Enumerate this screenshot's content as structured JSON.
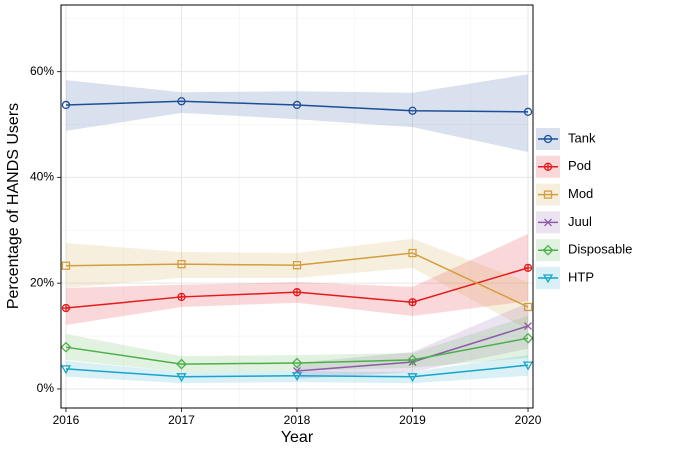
{
  "chart_data": {
    "type": "line",
    "x_label": "Year",
    "y_label": "Percentage of HANDS Users",
    "x": [
      2016,
      2017,
      2018,
      2019,
      2020
    ],
    "xlim": [
      2015.957,
      2020.043
    ],
    "xticks": [
      2016,
      2017,
      2018,
      2019,
      2020
    ],
    "x_minor_ticks": [
      2016.5,
      2017.5,
      2018.5,
      2019.5
    ],
    "ylim": [
      -3.6,
      72.6
    ],
    "yticks": [
      {
        "value": 0,
        "label": "0%"
      },
      {
        "value": 20,
        "label": "20%"
      },
      {
        "value": 40,
        "label": "40%"
      },
      {
        "value": 60,
        "label": "60%"
      }
    ],
    "y_minor_ticks": [
      10,
      30,
      50,
      70
    ],
    "grid": true,
    "legend": "right",
    "series": [
      {
        "name": "Tank",
        "color": "#1d4f98",
        "marker": "circle",
        "values": [
          53.7,
          54.4,
          53.7,
          52.6,
          52.4
        ],
        "lower": [
          48.8,
          52.2,
          51.0,
          49.5,
          44.8
        ],
        "upper": [
          58.4,
          56.1,
          56.3,
          56.0,
          59.5
        ]
      },
      {
        "name": "Pod",
        "color": "#e41a1c",
        "marker": "circle-plus",
        "values": [
          15.3,
          17.4,
          18.3,
          16.4,
          22.9
        ],
        "lower": [
          12.1,
          15.5,
          16.3,
          13.8,
          16.6
        ],
        "upper": [
          19.1,
          19.7,
          20.2,
          19.3,
          29.3
        ]
      },
      {
        "name": "Mod",
        "color": "#d29e3e",
        "marker": "square",
        "values": [
          23.3,
          23.6,
          23.4,
          25.7,
          15.5
        ],
        "lower": [
          19.1,
          21.0,
          21.0,
          22.9,
          11.2
        ],
        "upper": [
          27.6,
          25.9,
          25.7,
          28.4,
          20.2
        ]
      },
      {
        "name": "Juul",
        "color": "#8e5ba6",
        "marker": "x",
        "values": [
          null,
          null,
          3.4,
          5.1,
          11.9
        ],
        "lower": [
          null,
          null,
          1.9,
          3.2,
          7.6
        ],
        "upper": [
          null,
          null,
          4.9,
          7.0,
          16.3
        ]
      },
      {
        "name": "Disposable",
        "color": "#4daf4a",
        "marker": "diamond",
        "values": [
          7.9,
          4.7,
          4.9,
          5.5,
          9.6
        ],
        "lower": [
          5.5,
          3.2,
          3.4,
          4.0,
          5.9
        ],
        "upper": [
          10.4,
          6.2,
          6.4,
          6.8,
          13.8
        ]
      },
      {
        "name": "HTP",
        "color": "#17a5c9",
        "marker": "triangle-down",
        "values": [
          3.8,
          2.3,
          2.5,
          2.3,
          4.5
        ],
        "lower": [
          2.3,
          1.1,
          1.3,
          1.1,
          2.5
        ],
        "upper": [
          5.3,
          3.2,
          3.4,
          3.2,
          6.4
        ]
      }
    ]
  }
}
